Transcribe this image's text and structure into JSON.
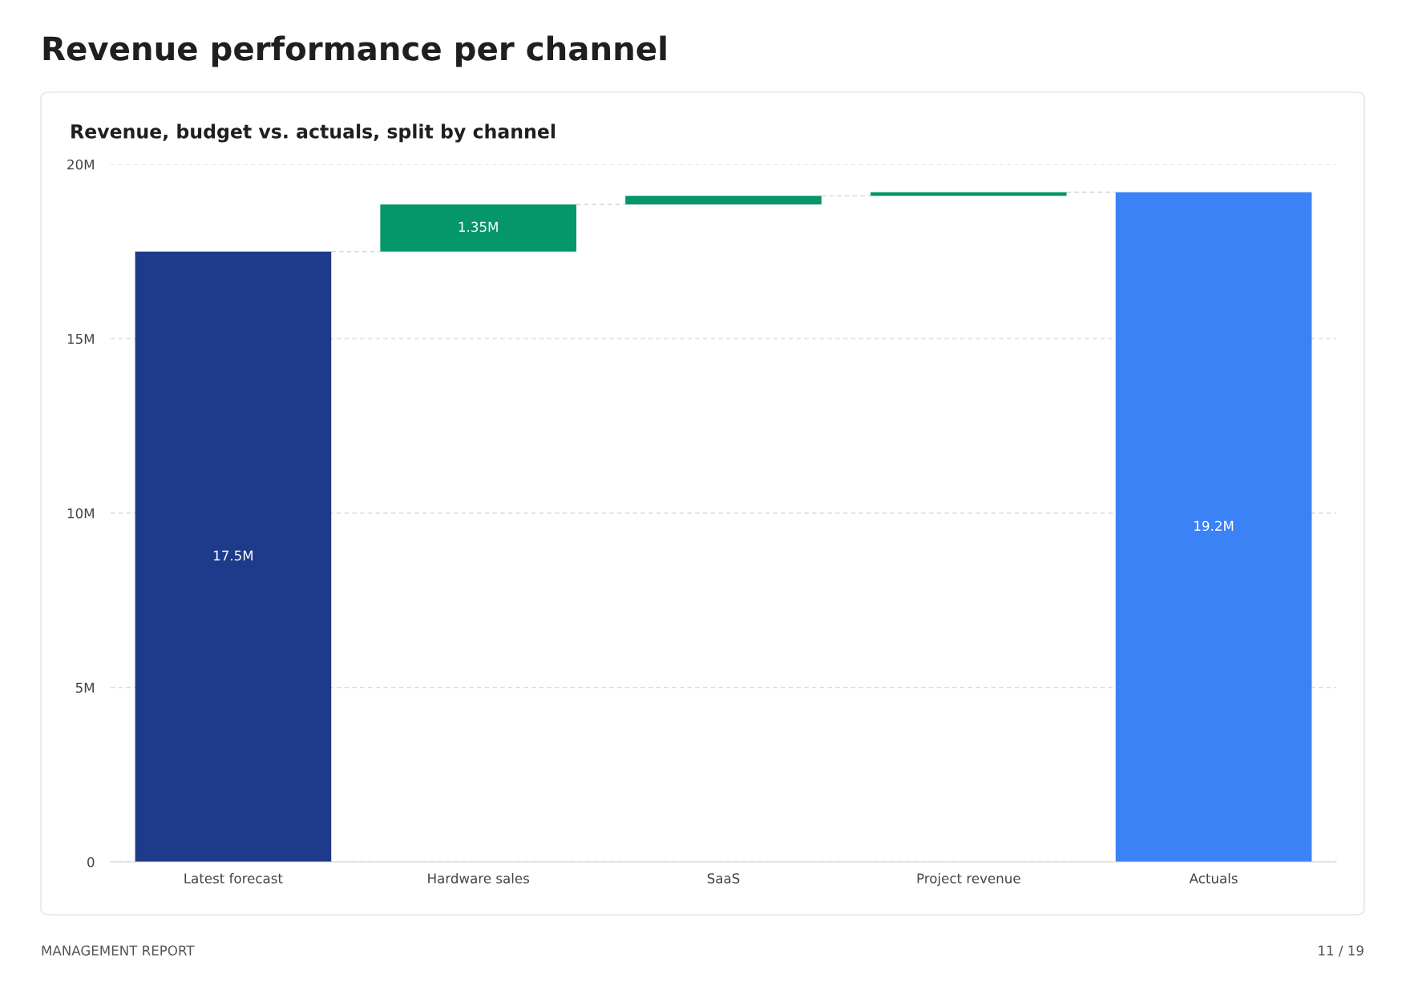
{
  "chart_data": {
    "type": "bar",
    "title": "Revenue performance per channel",
    "subtitle": "Revenue, budget vs. actuals, split by channel",
    "categories": [
      "Latest forecast",
      "Hardware sales",
      "SaaS",
      "Project revenue",
      "Actuals"
    ],
    "values": [
      17.5,
      1.35,
      0.25,
      0.1,
      19.2
    ],
    "base": [
      0,
      17.5,
      18.85,
      19.1,
      0
    ],
    "colors": [
      "#1e3a8a",
      "#059669",
      "#059669",
      "#059669",
      "#3b82f6"
    ],
    "value_labels": [
      "17.5M",
      "1.35M",
      null,
      null,
      "19.2M"
    ],
    "ylim": [
      0,
      20
    ],
    "yticks": [
      {
        "value": 0,
        "label": "0"
      },
      {
        "value": 5,
        "label": "5M"
      },
      {
        "value": 10,
        "label": "10M"
      },
      {
        "value": 15,
        "label": "15M"
      },
      {
        "value": 20,
        "label": "20M"
      }
    ],
    "grid": "y",
    "annotations": [
      "MANAGEMENT REPORT",
      "11 / 19"
    ]
  }
}
